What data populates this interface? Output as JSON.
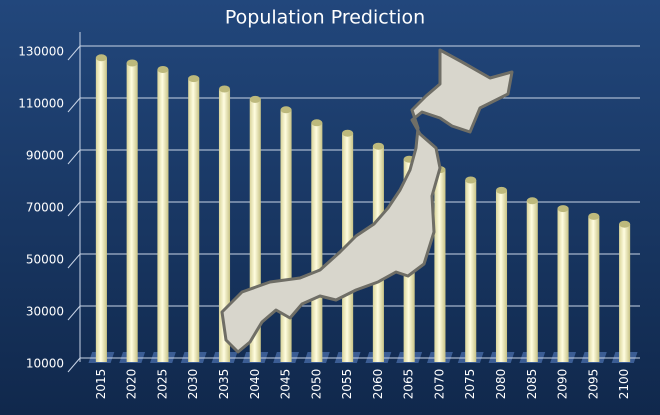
{
  "chart_data": {
    "type": "bar",
    "title": "Population Prediction",
    "categories": [
      "2015",
      "2020",
      "2025",
      "2030",
      "2035",
      "2040",
      "2045",
      "2050",
      "2055",
      "2060",
      "2065",
      "2070",
      "2075",
      "2080",
      "2085",
      "2090",
      "2095",
      "2100"
    ],
    "values": [
      127000,
      125000,
      122500,
      119000,
      115000,
      111000,
      107000,
      102000,
      98000,
      93000,
      88000,
      84000,
      80000,
      76000,
      72000,
      69000,
      66000,
      63000
    ],
    "color": "#f3f0b8",
    "ylim": [
      10000,
      130000
    ],
    "yticks": [
      10000,
      30000,
      50000,
      70000,
      90000,
      110000,
      130000
    ],
    "grid": true
  }
}
